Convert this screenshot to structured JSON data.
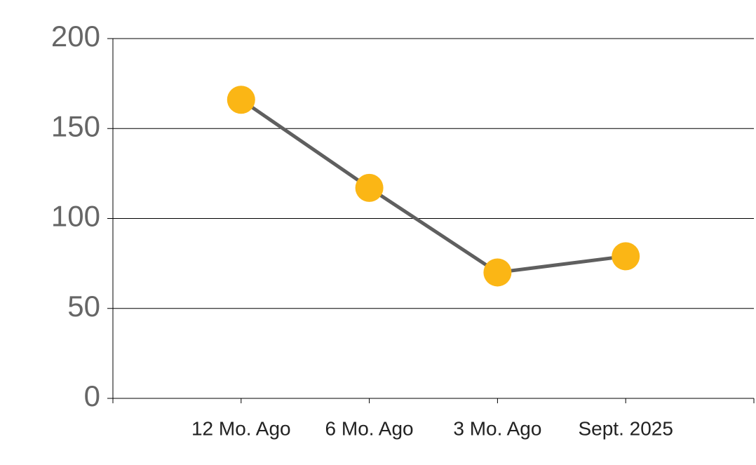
{
  "chart_data": {
    "type": "line",
    "categories": [
      "12 Mo. Ago",
      "6 Mo. Ago",
      "3 Mo. Ago",
      "Sept. 2025"
    ],
    "values": [
      166,
      117,
      70,
      79
    ],
    "line_color": "#5f5f5f",
    "marker_color": "#fbb615",
    "ylim": [
      0,
      200
    ],
    "yticks": [
      0,
      50,
      100,
      150,
      200
    ],
    "grid": true
  }
}
